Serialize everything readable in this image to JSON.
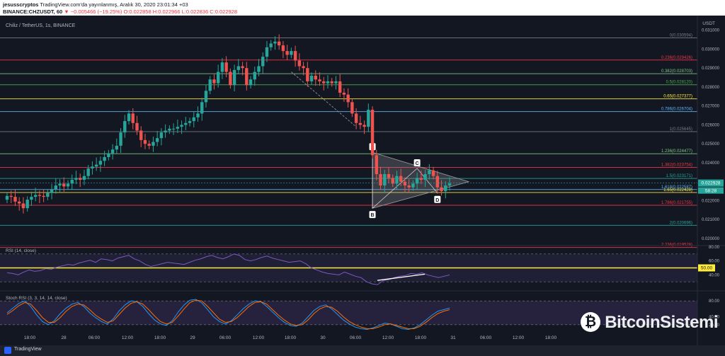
{
  "header": {
    "author": "jesusscryptos",
    "published": "TradingView.com'da yayınlanmış, Aralık 30, 2020 23:01:34 +03",
    "symbol": "BINANCE:CHZUSDT, 60",
    "change": "▼ −0.005466 (−19.25%)",
    "ohlc": "O:0.022858 H:0.022966 L:0.022836 C:0.022928"
  },
  "chart_data": {
    "type": "candlestick",
    "title": "Chiliz / TetherUS, 1s, BINANCE",
    "currency_label": "USDT",
    "ylim": [
      0.0197,
      0.0314
    ],
    "y_ticks": [
      "0.031000",
      "0.030000",
      "0.029000",
      "0.028000",
      "0.027000",
      "0.026000",
      "0.025000",
      "0.024000",
      "0.023000",
      "0.022000",
      "0.021000",
      "0.020000"
    ],
    "x_ticks": [
      "18:00",
      "28",
      "06:00",
      "12:00",
      "18:00",
      "29",
      "06:00",
      "12:00",
      "18:00",
      "30",
      "06:00",
      "12:00",
      "18:00",
      "31",
      "06:00",
      "12:00",
      "18:00"
    ],
    "last_price": "0.022928",
    "countdown": "58:28",
    "fib_levels": [
      {
        "label": "0(0.030594)",
        "value": 0.030594,
        "color": "#787b86"
      },
      {
        "label": "0.236(0.029426)",
        "value": 0.029426,
        "color": "#f23645"
      },
      {
        "label": "0.382(0.028703)",
        "value": 0.028703,
        "color": "#81c784"
      },
      {
        "label": "0.5(0.028120)",
        "value": 0.02812,
        "color": "#4caf50"
      },
      {
        "label": "0.65(0.027377)",
        "value": 0.027377,
        "color": "#ffeb3b"
      },
      {
        "label": "0.786(0.026704)",
        "value": 0.026704,
        "color": "#64b5f6"
      },
      {
        "label": "1(0.025645)",
        "value": 0.025645,
        "color": "#787b86"
      },
      {
        "label": "1.236(0.024477)",
        "value": 0.024477,
        "color": "#81c784"
      },
      {
        "label": "1.382(0.023754)",
        "value": 0.023754,
        "color": "#f23645"
      },
      {
        "label": "1.5(0.023171)",
        "value": 0.023171,
        "color": "#26a69a"
      },
      {
        "label": "1.618(0.022587)",
        "value": 0.022587,
        "color": "#64b5f6"
      },
      {
        "label": "1.65(0.022428)",
        "value": 0.022428,
        "color": "#ffeb3b"
      },
      {
        "label": "1.786(0.021755)",
        "value": 0.021755,
        "color": "#f23645"
      },
      {
        "label": "2(0.020696)",
        "value": 0.020696,
        "color": "#26a69a"
      },
      {
        "label": "2.236(0.019528)",
        "value": 0.019528,
        "color": "#f23645"
      }
    ],
    "pattern_points": [
      "A",
      "B",
      "C",
      "D"
    ],
    "closes": [
      0.02225,
      0.0222,
      0.02195,
      0.02185,
      0.0216,
      0.02205,
      0.0222,
      0.0223,
      0.02225,
      0.0222,
      0.0224,
      0.0226,
      0.0228,
      0.0229,
      0.02275,
      0.0229,
      0.0231,
      0.0232,
      0.0231,
      0.0233,
      0.0237,
      0.0238,
      0.0239,
      0.0241,
      0.0243,
      0.0245,
      0.0247,
      0.0249,
      0.0256,
      0.0262,
      0.0266,
      0.0261,
      0.0257,
      0.0252,
      0.025,
      0.0249,
      0.0251,
      0.0253,
      0.0256,
      0.0257,
      0.0258,
      0.0258,
      0.0259,
      0.026,
      0.0261,
      0.0262,
      0.0264,
      0.0266,
      0.0272,
      0.0278,
      0.0284,
      0.0282,
      0.0288,
      0.0293,
      0.0288,
      0.0281,
      0.0289,
      0.0291,
      0.029,
      0.0281,
      0.0284,
      0.0288,
      0.0291,
      0.0296,
      0.0301,
      0.0303,
      0.0304,
      0.0302,
      0.0299,
      0.0297,
      0.0299,
      0.0294,
      0.0291,
      0.029,
      0.0283,
      0.0286,
      0.0284,
      0.0283,
      0.0282,
      0.0283,
      0.0282,
      0.0283,
      0.0277,
      0.0276,
      0.0272,
      0.0266,
      0.0261,
      0.026,
      0.0259,
      0.0268,
      0.0244,
      0.0234,
      0.0228,
      0.0234,
      0.0232,
      0.0229,
      0.0233,
      0.023,
      0.0228,
      0.0227,
      0.0229,
      0.0232,
      0.0231,
      0.0234,
      0.0236,
      0.0233,
      0.0227,
      0.0225,
      0.0228,
      0.0229
    ],
    "rsi": {
      "label": "RSI (14, close)",
      "ylim": [
        20,
        80
      ],
      "ticks": [
        "80.00",
        "60.00",
        "40.00"
      ],
      "current": "50.00",
      "upper_band": 70,
      "lower_band": 30,
      "values": [
        43,
        42,
        40,
        44,
        47,
        45,
        46,
        49,
        48,
        51,
        53,
        55,
        54,
        57,
        59,
        61,
        58,
        63,
        62,
        60,
        64,
        66,
        68,
        63,
        60,
        55,
        52,
        54,
        56,
        58,
        57,
        56,
        55,
        58,
        61,
        63,
        66,
        68,
        65,
        63,
        66,
        70,
        68,
        62,
        60,
        62,
        65,
        67,
        64,
        62,
        60,
        58,
        59,
        60,
        56,
        50,
        47,
        44,
        42,
        41,
        40,
        44,
        41,
        38,
        36,
        30,
        27,
        26,
        32,
        33,
        36,
        38,
        39,
        42,
        41,
        43,
        40,
        38,
        36,
        38,
        40
      ]
    },
    "stoch_rsi": {
      "label": "Stoch RSI (3, 3, 14, 14, close)",
      "ylim": [
        0,
        100
      ],
      "ticks": [
        "80.00",
        "40.00",
        "20.00"
      ],
      "k": [
        50,
        62,
        74,
        80,
        66,
        45,
        28,
        20,
        30,
        48,
        62,
        72,
        76,
        66,
        50,
        38,
        28,
        22,
        35,
        55,
        70,
        80,
        78,
        66,
        48,
        32,
        22,
        18,
        30,
        52,
        70,
        82,
        84,
        75,
        58,
        40,
        28,
        22,
        30,
        45,
        60,
        72,
        80,
        78,
        66,
        52,
        38,
        26,
        18,
        16,
        24,
        40,
        56,
        66,
        70,
        60,
        46,
        32,
        22,
        14,
        10,
        8,
        12,
        18,
        24,
        22,
        16,
        10,
        8,
        12,
        20,
        32,
        44,
        54,
        58,
        62
      ],
      "d": [
        46,
        56,
        68,
        76,
        72,
        56,
        38,
        26,
        26,
        38,
        54,
        66,
        72,
        70,
        58,
        44,
        34,
        26,
        30,
        46,
        62,
        74,
        78,
        72,
        58,
        42,
        28,
        22,
        26,
        42,
        60,
        76,
        82,
        80,
        66,
        50,
        34,
        26,
        28,
        38,
        52,
        66,
        76,
        78,
        72,
        58,
        44,
        32,
        22,
        18,
        20,
        32,
        48,
        60,
        66,
        64,
        54,
        40,
        28,
        20,
        14,
        10,
        10,
        14,
        20,
        22,
        18,
        14,
        10,
        10,
        16,
        26,
        38,
        48,
        54,
        58
      ]
    }
  },
  "footer": {
    "brand": "TradingView",
    "watermark": "BitcoinSistemi"
  }
}
